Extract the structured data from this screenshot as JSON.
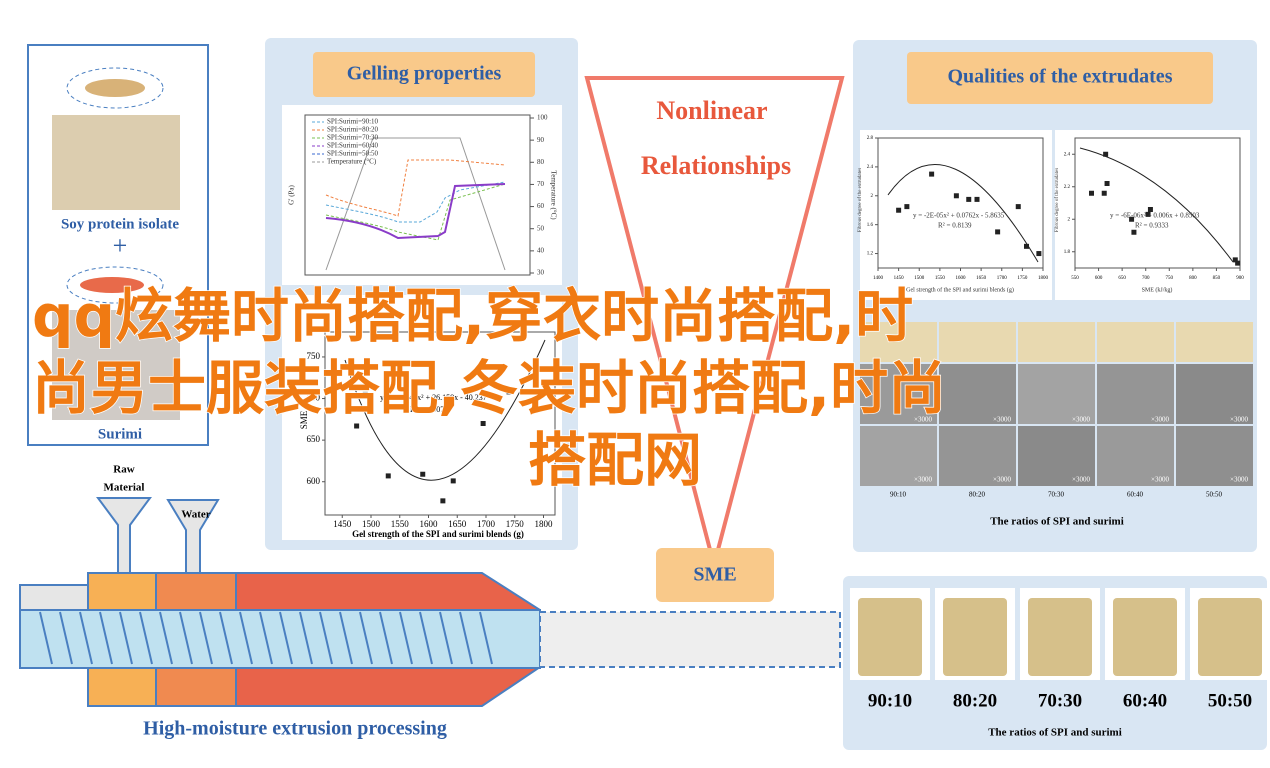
{
  "left_panel": {
    "label_top": "Soy protein isolate",
    "plus": "+",
    "label_bottom": "Surimi"
  },
  "gelling": {
    "title": "Gelling properties",
    "top_chart": {
      "y_label": "G' (Pa)",
      "y2_label": "Temperature (°C)",
      "legend": [
        "SPI:Surimi=90:10",
        "SPI:Surimi=80:20",
        "SPI:Surimi=70:30",
        "SPI:Surimi=60:40",
        "SPI:Surimi=50:50",
        "Temperature (°C)"
      ],
      "y2ticks": [
        100,
        90,
        80,
        70,
        60,
        50,
        40,
        30
      ]
    },
    "bottom_chart": {
      "y_label": "SME",
      "equation": "y = -0.0042x² + 26.158x - 40,237",
      "r2": "R² = 0.9077",
      "x_label": "Gel strength of the SPI and surimi blends (g)",
      "xlim": [
        1420,
        1820
      ],
      "ylim": [
        560,
        780
      ],
      "xticks": [
        1450,
        1500,
        1550,
        1600,
        1650,
        1700,
        1750,
        1800
      ],
      "yticks": [
        600,
        650,
        700,
        750
      ],
      "x": [
        1475,
        1490,
        1530,
        1590,
        1625,
        1643,
        1695,
        1740
      ],
      "values": [
        667,
        705,
        607,
        609,
        577,
        601,
        670,
        708
      ]
    }
  },
  "center": {
    "line1": "Nonlinear",
    "line2": "Relationships",
    "sme": "SME"
  },
  "qualities": {
    "title": "Qualities of the extrudates",
    "charts": [
      {
        "y_label": "Fibrous degree of the extrudates",
        "equation": "y = -2E-05x² + 0.0762x - 5.8635",
        "r2": "R² = 0.8139",
        "x_label": "Gel strength of the SPI and surimi blends (g)",
        "xlim": [
          1400,
          1800
        ],
        "ylim": [
          1.0,
          2.8
        ],
        "xticks": [
          1400,
          1450,
          1500,
          1550,
          1600,
          1650,
          1700,
          1750,
          1800
        ],
        "yticks": [
          1.2,
          1.6,
          2.0,
          2.4,
          2.8
        ],
        "x": [
          1450,
          1470,
          1530,
          1590,
          1620,
          1640,
          1690,
          1740,
          1760,
          1790
        ],
        "values": [
          1.8,
          1.85,
          2.3,
          2.0,
          1.95,
          1.95,
          1.5,
          1.85,
          1.3,
          1.2
        ]
      },
      {
        "y_label": "Fibrous degree of the extrudates",
        "equation": "y = -6E-06x² + 0.006x + 0.8503",
        "r2": "R² = 0.9333",
        "x_label": "SME (kJ/kg)",
        "xlim": [
          550,
          900
        ],
        "ylim": [
          1.7,
          2.5
        ],
        "xticks": [
          550,
          600,
          650,
          700,
          750,
          800,
          850,
          900
        ],
        "yticks": [
          1.8,
          2.0,
          2.2,
          2.4
        ],
        "x": [
          585,
          612,
          615,
          618,
          670,
          675,
          705,
          710,
          890,
          895
        ],
        "values": [
          2.16,
          2.16,
          2.4,
          2.22,
          2.0,
          1.92,
          2.03,
          2.06,
          1.75,
          1.73
        ]
      }
    ],
    "sem_labels": [
      "90:10",
      "80:20",
      "70:30",
      "60:40",
      "50:50"
    ],
    "sem_scale": "×3000",
    "caption": "The ratios of SPI and surimi"
  },
  "extrusion": {
    "raw": "Raw",
    "material": "Material",
    "water": "Water",
    "title": "High-moisture extrusion processing"
  },
  "samples": {
    "labels": [
      "90:10",
      "80:20",
      "70:30",
      "60:40",
      "50:50"
    ],
    "caption": "The ratios of SPI and surimi"
  },
  "overlay": {
    "lines": [
      "qq炫舞时尚搭配,穿衣时尚搭配,时",
      "尚男士服装搭配,冬装时尚搭配,时尚",
      "搭配网"
    ]
  }
}
